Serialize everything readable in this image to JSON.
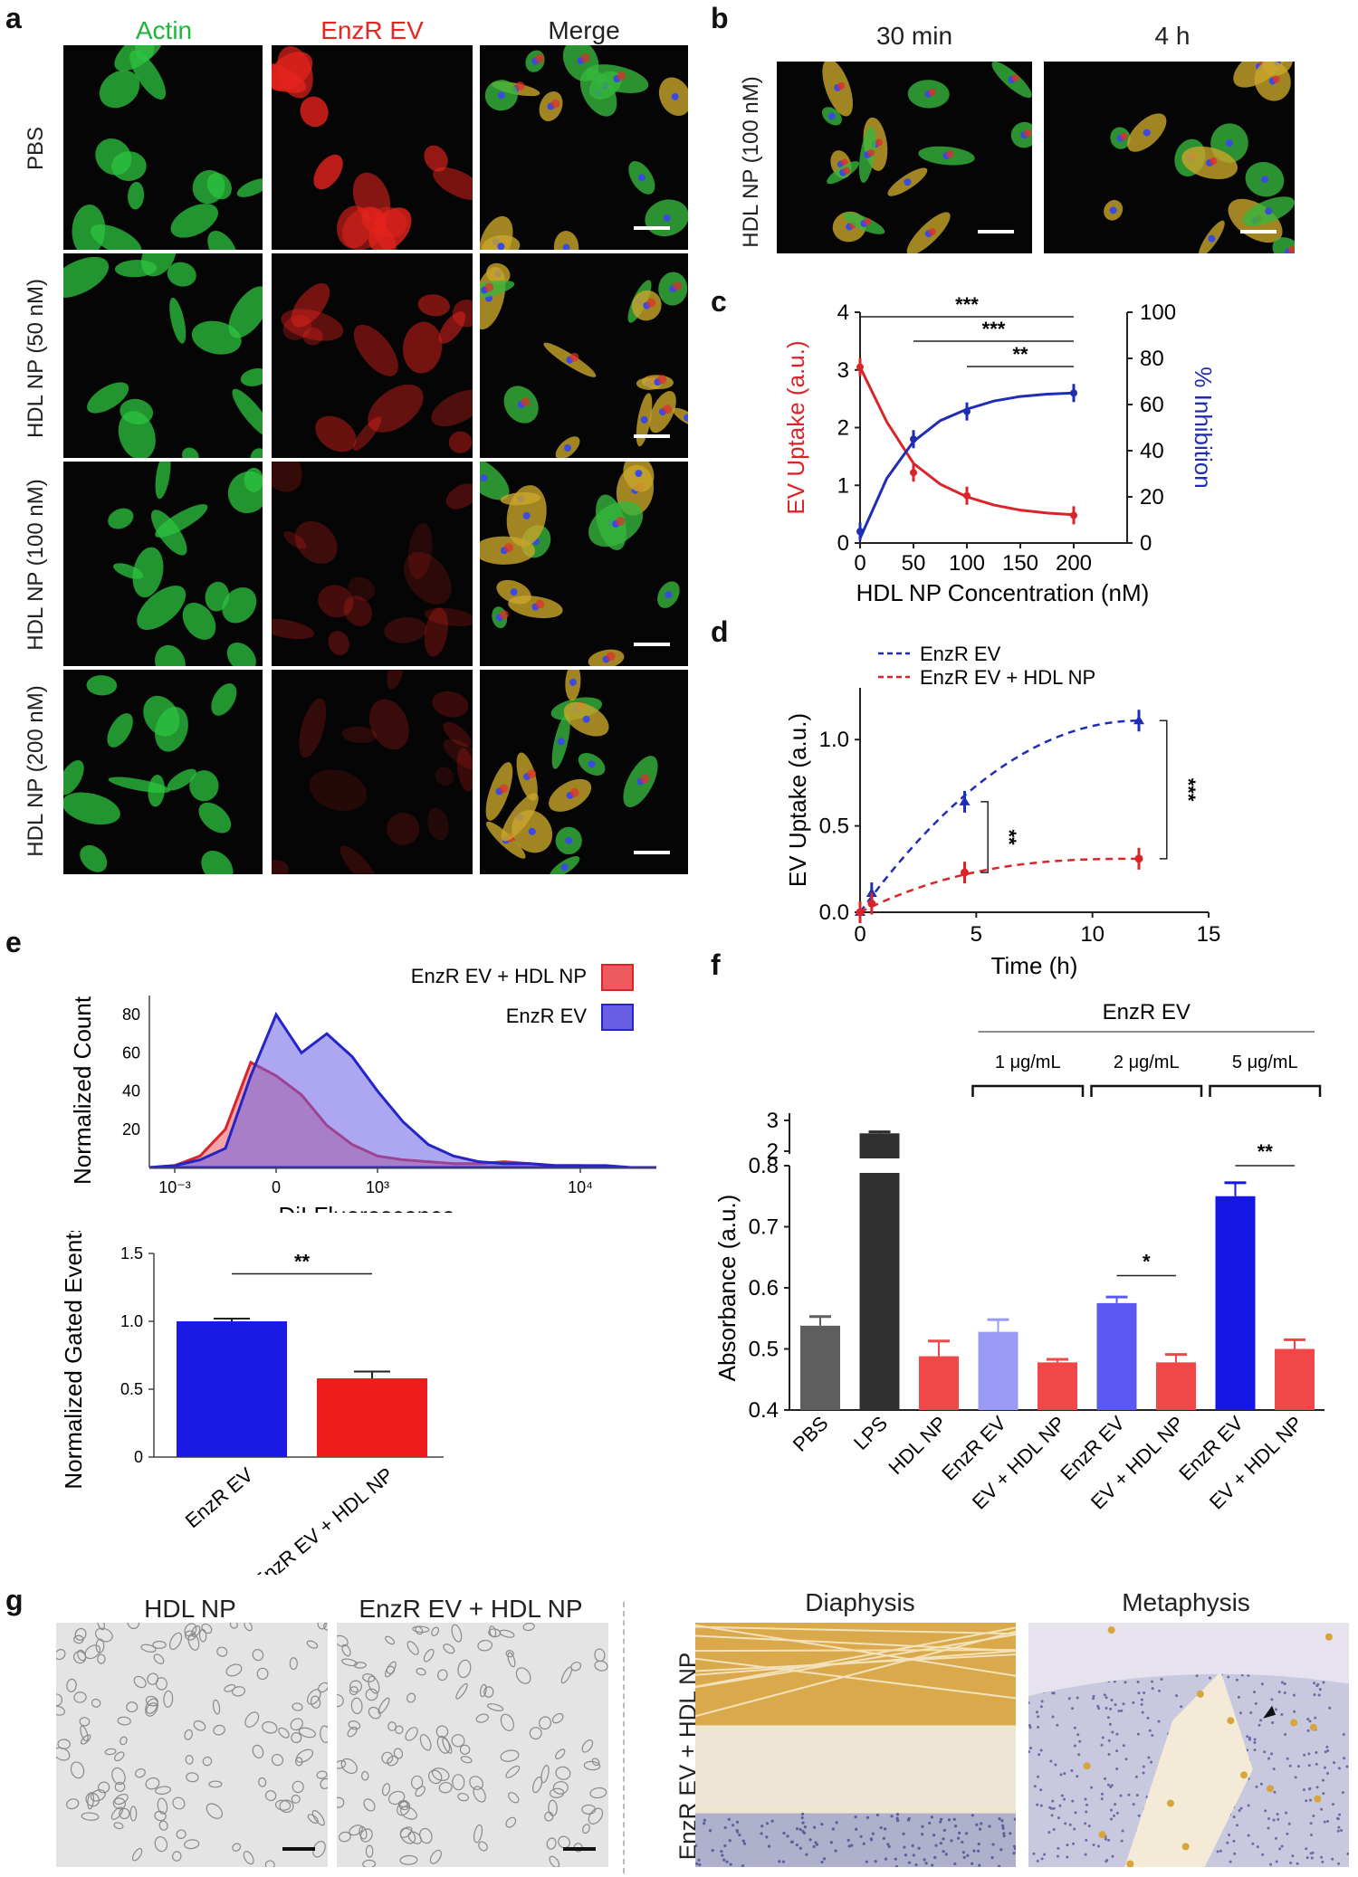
{
  "panel_labels": {
    "a": "a",
    "b": "b",
    "c": "c",
    "d": "d",
    "e": "e",
    "f": "f",
    "g": "g"
  },
  "panel_a": {
    "columns": [
      "Actin",
      "EnzR EV",
      "Merge"
    ],
    "rows": [
      "PBS",
      "HDL NP (50 nM)",
      "HDL NP (100 nM)",
      "HDL NP (200 nM)"
    ],
    "colors": {
      "actin": "#1db53a",
      "enzr": "#e8251f",
      "merge": "#222222"
    }
  },
  "panel_b": {
    "columns": [
      "30 min",
      "4 h"
    ],
    "row": "HDL NP (100 nM)"
  },
  "panel_g": {
    "left_titles": [
      "HDL NP",
      "EnzR EV + HDL NP"
    ],
    "right_titles": [
      "Diaphysis",
      "Metaphysis"
    ],
    "row_label": "EnzR EV + HDL NP"
  },
  "chart_data": [
    {
      "id": "c",
      "type": "line",
      "xlabel": "HDL NP Concentration (nM)",
      "ylabel_left": "EV Uptake (a.u.)",
      "ylabel_right": "% Inhibition",
      "xlim": [
        0,
        250
      ],
      "ylim_left": [
        0,
        4
      ],
      "ylim_right": [
        0,
        100
      ],
      "xticks": [
        "0",
        "50",
        "100",
        "150",
        "200"
      ],
      "yticks_left": [
        "0",
        "1",
        "2",
        "3",
        "4"
      ],
      "yticks_right": [
        "0",
        "20",
        "40",
        "60",
        "80",
        "100"
      ],
      "series": [
        {
          "name": "EV Uptake",
          "axis": "left",
          "color": "#d9252a",
          "x": [
            0,
            50,
            100,
            200
          ],
          "y": [
            3.05,
            1.22,
            0.82,
            0.48
          ],
          "fit": [
            [
              0,
              3.05
            ],
            [
              25,
              2.1
            ],
            [
              50,
              1.38
            ],
            [
              75,
              1.02
            ],
            [
              100,
              0.8
            ],
            [
              125,
              0.66
            ],
            [
              150,
              0.57
            ],
            [
              175,
              0.52
            ],
            [
              200,
              0.49
            ]
          ]
        },
        {
          "name": "% Inhibition",
          "axis": "right",
          "color": "#1f2db5",
          "x": [
            0,
            50,
            100,
            200
          ],
          "y": [
            5,
            45,
            57,
            65
          ],
          "fit": [
            [
              0,
              2
            ],
            [
              25,
              28
            ],
            [
              50,
              44
            ],
            [
              75,
              53
            ],
            [
              100,
              58
            ],
            [
              125,
              61.5
            ],
            [
              150,
              63.5
            ],
            [
              175,
              64.5
            ],
            [
              200,
              65
            ]
          ]
        }
      ],
      "significance": [
        "***",
        "***",
        "**"
      ]
    },
    {
      "id": "d",
      "type": "line",
      "xlabel": "Time (h)",
      "ylabel": "EV Uptake (a.u.)",
      "xlim": [
        0,
        15
      ],
      "ylim": [
        0,
        1.3
      ],
      "xticks": [
        "0",
        "5",
        "10",
        "15"
      ],
      "yticks": [
        "0.0",
        "0.5",
        "1.0"
      ],
      "series": [
        {
          "name": "EnzR EV",
          "color": "#1f2db5",
          "x": [
            0,
            0.5,
            4.5,
            12
          ],
          "y": [
            0.0,
            0.11,
            0.64,
            1.11
          ]
        },
        {
          "name": "EnzR EV + HDL NP",
          "color": "#d9252a",
          "x": [
            0,
            0.5,
            4.5,
            12
          ],
          "y": [
            0.0,
            0.05,
            0.23,
            0.31
          ]
        }
      ],
      "significance": [
        "**",
        "***"
      ]
    },
    {
      "id": "e_hist",
      "type": "area",
      "xlabel": "DiI Fluorescence",
      "ylabel": "Normalized Count",
      "xticks": [
        "10⁻³",
        "0",
        "10³",
        "10⁴"
      ],
      "yticks": [
        "20",
        "40",
        "60",
        "80"
      ],
      "legend": [
        "EnzR EV + HDL NP",
        "EnzR EV"
      ],
      "series": [
        {
          "name": "EnzR EV",
          "color": "#6a5ee6",
          "x": [
            0,
            1,
            2,
            3,
            4,
            5,
            6,
            7,
            8,
            9,
            10,
            11,
            12,
            13,
            14,
            15,
            16,
            17,
            18,
            19,
            20
          ],
          "y": [
            0,
            1,
            4,
            10,
            48,
            80,
            60,
            70,
            58,
            40,
            24,
            12,
            6,
            3,
            2,
            2,
            1,
            1,
            1,
            0,
            0
          ]
        },
        {
          "name": "EnzR EV + HDL NP",
          "color": "#ef5a5f",
          "x": [
            0,
            1,
            2,
            3,
            4,
            5,
            6,
            7,
            8,
            9,
            10,
            11,
            12,
            13,
            14,
            15,
            16,
            17,
            18,
            19,
            20
          ],
          "y": [
            0,
            1,
            6,
            20,
            55,
            48,
            38,
            22,
            12,
            6,
            4,
            3,
            2,
            2,
            3,
            2,
            1,
            1,
            0,
            0,
            0
          ]
        }
      ]
    },
    {
      "id": "e_bar",
      "type": "bar",
      "ylabel": "Normalized Gated Events",
      "ylim": [
        0,
        1.5
      ],
      "yticks": [
        "0",
        "0.5",
        "1.0",
        "1.5"
      ],
      "categories": [
        "EnzR EV",
        "EnzR EV + HDL NP"
      ],
      "values": [
        1.0,
        0.58
      ],
      "errors": [
        0.02,
        0.05
      ],
      "colors": [
        "#1a1ae6",
        "#ee1c1c"
      ],
      "significance": "**"
    },
    {
      "id": "f",
      "type": "bar",
      "ylabel": "Absorbance (a.u.)",
      "yticks": [
        "0.4",
        "0.5",
        "0.6",
        "0.7",
        "0.8"
      ],
      "yticks_break": [
        "2",
        "3"
      ],
      "categories": [
        "PBS",
        "LPS",
        "HDL NP",
        "EnzR EV",
        "EV + HDL NP",
        "EnzR EV",
        "EV + HDL NP",
        "EnzR EV",
        "EV + HDL NP"
      ],
      "values": [
        0.538,
        2.58,
        0.488,
        0.528,
        0.478,
        0.575,
        0.478,
        0.75,
        0.5
      ],
      "errors": [
        0.015,
        0.05,
        0.025,
        0.02,
        0.005,
        0.01,
        0.013,
        0.022,
        0.015
      ],
      "colors": [
        "#5e5e5e",
        "#2f2f2f",
        "#f04848",
        "#9b9bf5",
        "#f04848",
        "#5a5af2",
        "#f04848",
        "#1515e6",
        "#f04848"
      ],
      "group_title": "EnzR EV",
      "groups": [
        "1 μg/mL",
        "2 μg/mL",
        "5 μg/mL"
      ],
      "significance": [
        "*",
        "**"
      ]
    }
  ]
}
